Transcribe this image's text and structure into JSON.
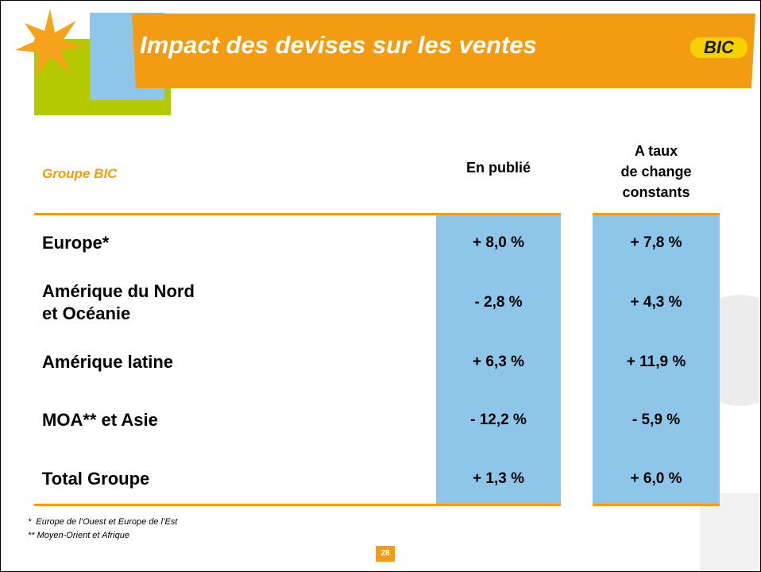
{
  "header": {
    "title": "Impact des devises sur les ventes",
    "logo": "BIC"
  },
  "table": {
    "group_label": "Groupe BIC",
    "columns": [
      "En publié",
      "A taux\nde change\nconstants"
    ],
    "rows": [
      [
        "Europe*",
        "+ 8,0 %",
        "+ 7,8 %"
      ],
      [
        "Amérique du Nord\net Océanie",
        "- 2,8 %",
        "+ 4,3 %"
      ],
      [
        "Amérique latine",
        "+ 6,3 %",
        "+ 11,9 %"
      ],
      [
        "MOA** et Asie",
        "- 12,2 %",
        "- 5,9 %"
      ],
      [
        "Total Groupe",
        "+ 1,3 %",
        "+ 6,0 %"
      ]
    ]
  },
  "footnotes": [
    "*  Europe de l’Ouest et Europe de l’Est",
    "** Moyen-Orient et Afrique"
  ],
  "page_number": "28"
}
